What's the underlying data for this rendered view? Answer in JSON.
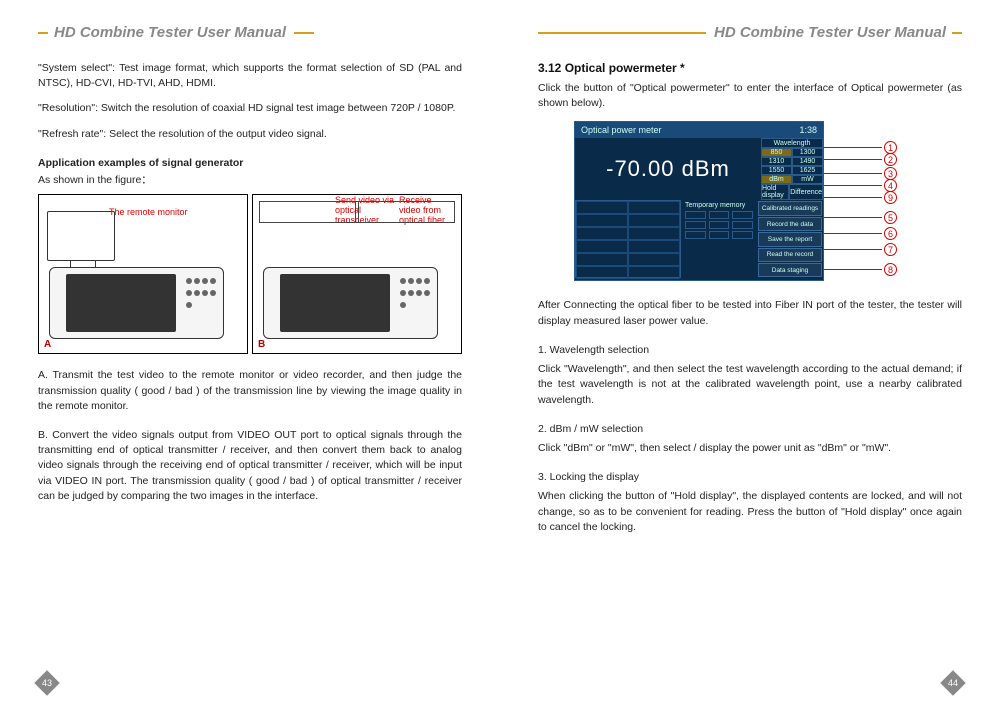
{
  "header_title": "HD Combine Tester User Manual",
  "left": {
    "page_num": "43",
    "p1": "\"System select\": Test image format, which supports the format selection of SD (PAL and NTSC), HD-CVI, HD-TVI, AHD, HDMI.",
    "p2": "\"Resolution\": Switch the resolution of coaxial HD signal test image between 720P / 1080P.",
    "p3": "\"Refresh rate\": Select the resolution of the output video signal.",
    "appex_title": "Application examples of signal generator",
    "appex_sub": "As shown in the figure：",
    "fig_a_label": "A",
    "fig_b_label": "B",
    "fig_a_caption": "The remote monitor",
    "fig_b_cap1": "Send video via optical transceiver",
    "fig_b_cap2": "Receive video from optical fiber",
    "pA": "A. Transmit the test video to the remote monitor or video recorder, and then judge the transmission quality ( good / bad ) of the transmission line by viewing the image quality in the remote monitor.",
    "pB": "B. Convert the video signals output from VIDEO OUT port to optical signals through the transmitting end of optical transmitter / receiver, and then convert them back to analog video signals through the receiving end of optical transmitter / receiver, which will be input via VIDEO IN port. The transmission quality ( good / bad ) of optical transmitter / receiver can be judged by comparing the two images in the interface."
  },
  "right": {
    "page_num": "44",
    "sec_title": "3.12 Optical powermeter *",
    "intro": "Click the button of \"Optical powermeter\" to enter the interface of Optical powermeter (as shown below).",
    "opm": {
      "status_left": "Optical power meter",
      "status_time": "1:38",
      "reading": "-70.00 dBm",
      "side_top_label": "Wavelength",
      "side_btns": [
        {
          "l": "850",
          "r": "1300"
        },
        {
          "l": "1310",
          "r": "1490"
        },
        {
          "l": "1550",
          "r": "1625"
        },
        {
          "l": "dBm",
          "r": "mW"
        },
        {
          "l": "Hold display",
          "r": "Difference"
        }
      ],
      "mem_title": "Temporary memory",
      "right_btns": [
        "Calibrated readings",
        "Record the data",
        "Save the report",
        "Read the record",
        "Data staging"
      ],
      "callouts": [
        "1",
        "2",
        "3",
        "4",
        "9",
        "5",
        "6",
        "7",
        "8"
      ]
    },
    "after": "After Connecting the optical fiber to be tested into Fiber IN port of the tester, the tester will display measured laser power value.",
    "h1": "1. Wavelength selection",
    "p1": "Click \"Wavelength\", and then select the test wavelength according to the actual demand; if the test wavelength is not at the calibrated wavelength point, use a nearby calibrated wavelength.",
    "h2": "2. dBm / mW selection",
    "p2": "Click \"dBm\" or \"mW\", then select / display the power unit as \"dBm\" or \"mW\".",
    "h3": "3. Locking the display",
    "p3": "When clicking the button of \"Hold display\", the displayed contents are locked, and will not change, so as to be convenient for reading. Press the button of \"Hold display\" once again to cancel the locking."
  },
  "colors": {
    "accent": "#d4a017",
    "callout": "#d00020"
  }
}
